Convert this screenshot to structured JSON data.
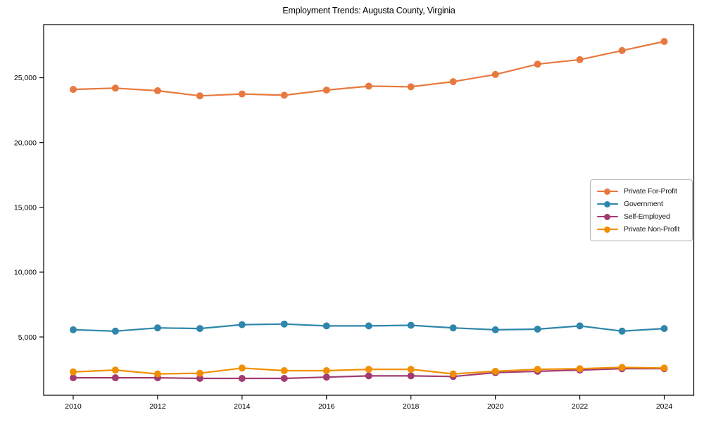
{
  "chart_data": {
    "type": "line",
    "title": "Employment Trends: Augusta County, Virginia",
    "xlabel": "",
    "ylabel": "",
    "x": [
      2010,
      2011,
      2012,
      2013,
      2014,
      2015,
      2016,
      2017,
      2018,
      2019,
      2020,
      2021,
      2022,
      2023,
      2024
    ],
    "x_ticks": [
      2010,
      2012,
      2014,
      2016,
      2018,
      2020,
      2022,
      2024
    ],
    "x_tick_labels": [
      "2010",
      "2012",
      "2014",
      "2016",
      "2018",
      "2020",
      "2022",
      "2024"
    ],
    "y_ticks": [
      5000,
      10000,
      15000,
      20000,
      25000
    ],
    "y_tick_labels": [
      "5,000",
      "10,000",
      "15,000",
      "20,000",
      "25,000"
    ],
    "xlim": [
      2009.3,
      2024.7
    ],
    "ylim": [
      500,
      29100
    ],
    "grid": false,
    "legend_position": "center-right",
    "series": [
      {
        "name": "Private For-Profit",
        "color": "#e8793e",
        "values": [
          24100,
          24200,
          24000,
          23600,
          23750,
          23650,
          24050,
          24350,
          24300,
          24700,
          25250,
          26050,
          26400,
          27100,
          27800
        ]
      },
      {
        "name": "Government",
        "color": "#2e86ab",
        "values": [
          5550,
          5450,
          5700,
          5650,
          5950,
          6000,
          5850,
          5850,
          5900,
          5700,
          5550,
          5600,
          5850,
          5450,
          5650
        ]
      },
      {
        "name": "Self-Employed",
        "color": "#a23b72",
        "values": [
          1850,
          1850,
          1850,
          1800,
          1800,
          1800,
          1900,
          2000,
          2000,
          1950,
          2250,
          2350,
          2450,
          2550,
          2550
        ]
      },
      {
        "name": "Private Non-Profit",
        "color": "#f18f01",
        "values": [
          2300,
          2450,
          2150,
          2200,
          2600,
          2400,
          2400,
          2500,
          2500,
          2150,
          2350,
          2500,
          2550,
          2650,
          2600
        ]
      }
    ]
  }
}
